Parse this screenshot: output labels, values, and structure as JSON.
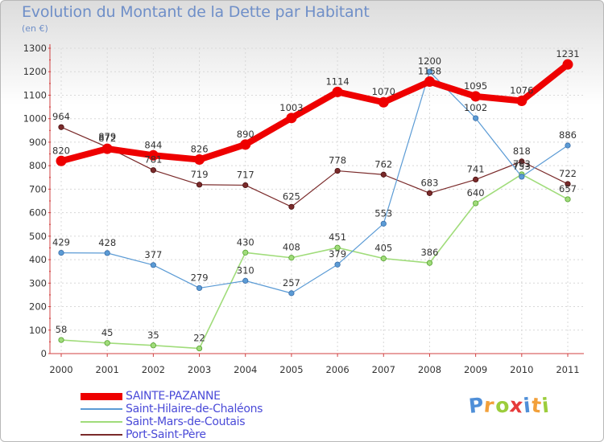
{
  "title": "Evolution du Montant de la Dette par Habitant",
  "unit": "(en €)",
  "logo": {
    "letters": [
      "P",
      "r",
      "o",
      "x",
      "i",
      "t",
      "i"
    ],
    "colors": [
      "#4f8fd8",
      "#f2a03a",
      "#9ccd3c",
      "#e63a3a",
      "#4f8fd8",
      "#f2a03a",
      "#9ccd3c"
    ]
  },
  "chart_data": {
    "type": "line",
    "title": "Evolution du Montant de la Dette par Habitant",
    "ylabel": "(en €)",
    "categories": [
      "2000",
      "2001",
      "2002",
      "2003",
      "2004",
      "2005",
      "2006",
      "2007",
      "2008",
      "2009",
      "2010",
      "2011"
    ],
    "ylim": [
      0,
      1300
    ],
    "yticks": [
      "0",
      "100",
      "200",
      "300",
      "400",
      "500",
      "600",
      "700",
      "800",
      "900",
      "1000",
      "1100",
      "1200",
      "1300"
    ],
    "grid": true,
    "legend_position": "bottom-left",
    "series": [
      {
        "name": "SAINTE-PAZANNE",
        "color": "#ee0000",
        "values": [
          820,
          872,
          844,
          826,
          890,
          1003,
          1114,
          1070,
          1158,
          1095,
          1076,
          1231
        ]
      },
      {
        "name": "Saint-Hilaire-de-Chaléons",
        "color": "#5b9bd5",
        "values": [
          429,
          428,
          377,
          279,
          310,
          257,
          379,
          553,
          1200,
          1002,
          753,
          886
        ]
      },
      {
        "name": "Saint-Mars-de-Coutais",
        "color": "#a0dc7a",
        "values": [
          58,
          45,
          35,
          22,
          430,
          408,
          451,
          405,
          386,
          640,
          763,
          657
        ]
      },
      {
        "name": "Port-Saint-Père",
        "color": "#7a2a2a",
        "values": [
          964,
          879,
          781,
          719,
          717,
          625,
          778,
          762,
          683,
          741,
          818,
          722
        ]
      }
    ]
  }
}
